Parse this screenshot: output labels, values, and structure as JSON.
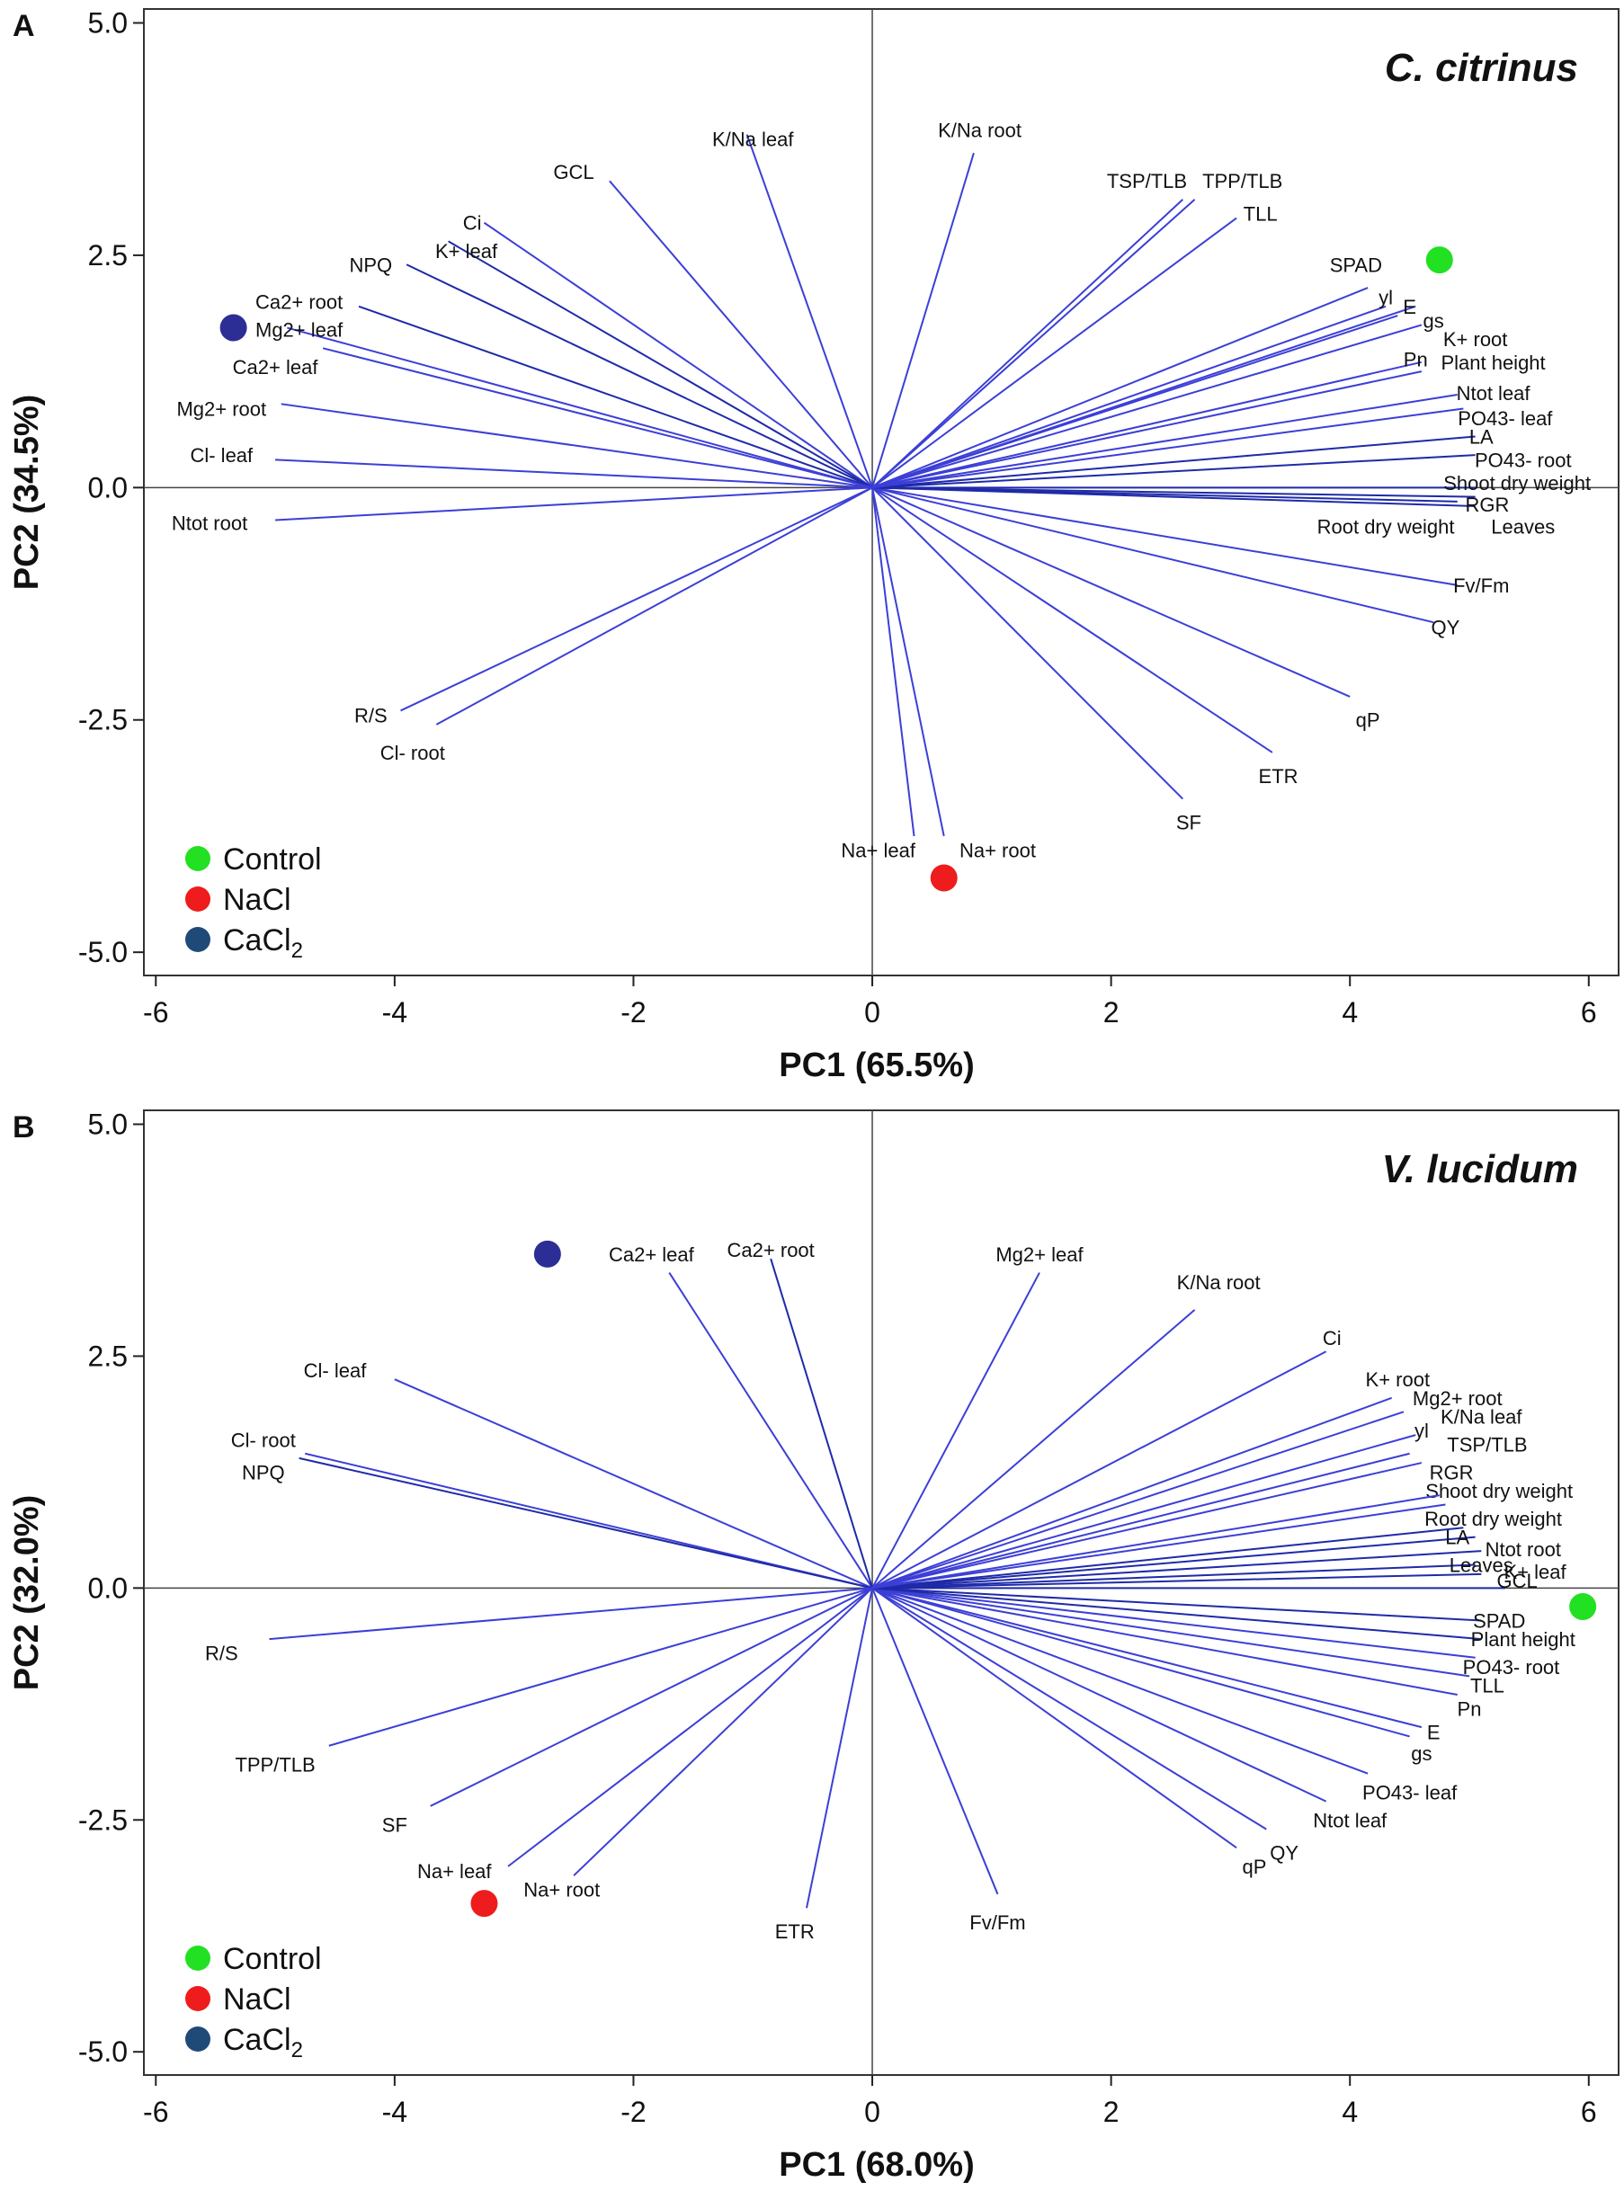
{
  "colors": {
    "vector": "#3c3fd6",
    "vector_dark": "#1f2aa8",
    "control": "#22e022",
    "nacl": "#ee1c1c",
    "cacl2": "#2c2e96",
    "cacl2_legend": "#1f4a78"
  },
  "chart_data": [
    {
      "type": "scatter",
      "panel": "A",
      "title": "C. citrinus",
      "xlabel": "PC1 (65.5%)",
      "ylabel": "PC2 (34.5%)",
      "xlim": [
        -6.1,
        6.25
      ],
      "ylim": [
        -5.25,
        5.15
      ],
      "xticks": [
        -6,
        -4,
        -2,
        0,
        2,
        4,
        6
      ],
      "xtick_labels": [
        "-6",
        "-4",
        "-2",
        "0",
        "2",
        "4",
        "6"
      ],
      "yticks": [
        5.0,
        2.5,
        0.0,
        -2.5,
        -5.0
      ],
      "ytick_labels": [
        "5.0",
        "2.5",
        "0.0",
        "-2.5",
        "-5.0"
      ],
      "legend_position": "bottom-left",
      "legend": [
        {
          "name": "Control",
          "color_key": "control"
        },
        {
          "name": "NaCl",
          "color_key": "nacl"
        },
        {
          "name": "CaCl2",
          "color_key": "cacl2_legend"
        }
      ],
      "points": [
        {
          "name": "Control",
          "x": 4.75,
          "y": 2.45,
          "color_key": "control"
        },
        {
          "name": "NaCl",
          "x": 0.6,
          "y": -4.2,
          "color_key": "nacl"
        },
        {
          "name": "CaCl2",
          "x": -5.35,
          "y": 1.72,
          "color_key": "cacl2"
        }
      ],
      "vectors": [
        {
          "label": "GCL",
          "x": -2.2,
          "y": 3.3,
          "lx": -2.5,
          "ly": 3.4
        },
        {
          "label": "K/Na leaf",
          "x": -1.05,
          "y": 3.8,
          "lx": -1.0,
          "ly": 3.75
        },
        {
          "label": "K/Na root",
          "x": 0.85,
          "y": 3.6,
          "lx": 0.9,
          "ly": 3.85
        },
        {
          "label": "Ci",
          "x": -3.25,
          "y": 2.85,
          "lx": -3.35,
          "ly": 2.85
        },
        {
          "label": "K+ leaf",
          "x": -3.55,
          "y": 2.65,
          "lx": -3.4,
          "ly": 2.55
        },
        {
          "label": "NPQ",
          "x": -3.9,
          "y": 2.4,
          "lx": -4.2,
          "ly": 2.4
        },
        {
          "label": "Ca2+ root",
          "x": -4.3,
          "y": 1.95,
          "lx": -4.8,
          "ly": 2.0
        },
        {
          "label": "Mg2+ leaf",
          "x": -4.9,
          "y": 1.72,
          "lx": -4.8,
          "ly": 1.7
        },
        {
          "label": "Ca2+ leaf",
          "x": -4.6,
          "y": 1.5,
          "lx": -5.0,
          "ly": 1.3
        },
        {
          "label": "Mg2+ root",
          "x": -4.95,
          "y": 0.9,
          "lx": -5.45,
          "ly": 0.85
        },
        {
          "label": "Cl- leaf",
          "x": -5.0,
          "y": 0.3,
          "lx": -5.45,
          "ly": 0.35
        },
        {
          "label": "Ntot root",
          "x": -5.0,
          "y": -0.35,
          "lx": -5.55,
          "ly": -0.38
        },
        {
          "label": "R/S",
          "x": -3.95,
          "y": -2.4,
          "lx": -4.2,
          "ly": -2.45
        },
        {
          "label": "Cl- root",
          "x": -3.65,
          "y": -2.55,
          "lx": -3.85,
          "ly": -2.85
        },
        {
          "label": "Na+ leaf",
          "x": 0.35,
          "y": -3.75,
          "lx": 0.05,
          "ly": -3.9
        },
        {
          "label": "Na+  root",
          "x": 0.6,
          "y": -3.75,
          "lx": 1.05,
          "ly": -3.9
        },
        {
          "label": "SF",
          "x": 2.6,
          "y": -3.35,
          "lx": 2.65,
          "ly": -3.6
        },
        {
          "label": "ETR",
          "x": 3.35,
          "y": -2.85,
          "lx": 3.4,
          "ly": -3.1
        },
        {
          "label": "qP",
          "x": 4.0,
          "y": -2.25,
          "lx": 4.15,
          "ly": -2.5
        },
        {
          "label": "QY",
          "x": 4.7,
          "y": -1.45,
          "lx": 4.8,
          "ly": -1.5
        },
        {
          "label": "Fv/Fm",
          "x": 4.9,
          "y": -1.05,
          "lx": 5.1,
          "ly": -1.05
        },
        {
          "label": "Leaves",
          "x": 5.05,
          "y": -0.2,
          "lx": 5.45,
          "ly": -0.42
        },
        {
          "label": "Root dry weight",
          "x": 4.9,
          "y": -0.15,
          "lx": 4.3,
          "ly": -0.42
        },
        {
          "label": "RGR",
          "x": 5.05,
          "y": -0.1,
          "lx": 5.15,
          "ly": -0.18
        },
        {
          "label": "Shoot dry weight",
          "x": 5.05,
          "y": 0.0,
          "lx": 5.4,
          "ly": 0.05
        },
        {
          "label": "PO43- root",
          "x": 5.05,
          "y": 0.35,
          "lx": 5.45,
          "ly": 0.3
        },
        {
          "label": "LA",
          "x": 5.05,
          "y": 0.55,
          "lx": 5.1,
          "ly": 0.55
        },
        {
          "label": "PO43- leaf",
          "x": 4.95,
          "y": 0.85,
          "lx": 5.3,
          "ly": 0.75
        },
        {
          "label": "Ntot leaf",
          "x": 4.9,
          "y": 1.0,
          "lx": 5.2,
          "ly": 1.02
        },
        {
          "label": "Plant height",
          "x": 4.6,
          "y": 1.25,
          "lx": 5.2,
          "ly": 1.35
        },
        {
          "label": "Pn",
          "x": 4.6,
          "y": 1.35,
          "lx": 4.55,
          "ly": 1.38
        },
        {
          "label": "K+ root",
          "x": 4.6,
          "y": 1.75,
          "lx": 5.05,
          "ly": 1.6
        },
        {
          "label": "gs",
          "x": 4.55,
          "y": 1.95,
          "lx": 4.7,
          "ly": 1.8
        },
        {
          "label": "E",
          "x": 4.4,
          "y": 1.85,
          "lx": 4.5,
          "ly": 1.95
        },
        {
          "label": "yl",
          "x": 4.3,
          "y": 1.95,
          "lx": 4.3,
          "ly": 2.05
        },
        {
          "label": "SPAD",
          "x": 4.15,
          "y": 2.15,
          "lx": 4.05,
          "ly": 2.4
        },
        {
          "label": "TLL",
          "x": 3.05,
          "y": 2.9,
          "lx": 3.25,
          "ly": 2.95
        },
        {
          "label": "TPP/TLB",
          "x": 2.7,
          "y": 3.1,
          "lx": 3.1,
          "ly": 3.3
        },
        {
          "label": "TSP/TLB",
          "x": 2.6,
          "y": 3.1,
          "lx": 2.3,
          "ly": 3.3
        }
      ]
    },
    {
      "type": "scatter",
      "panel": "B",
      "title": "V. lucidum",
      "xlabel": "PC1 (68.0%)",
      "ylabel": "PC2 (32.0%)",
      "xlim": [
        -6.1,
        6.25
      ],
      "ylim": [
        -5.25,
        5.15
      ],
      "xticks": [
        -6,
        -4,
        -2,
        0,
        2,
        4,
        6
      ],
      "xtick_labels": [
        "-6",
        "-4",
        "-2",
        "0",
        "2",
        "4",
        "6"
      ],
      "yticks": [
        5.0,
        2.5,
        0.0,
        -2.5,
        -5.0
      ],
      "ytick_labels": [
        "5.0",
        "2.5",
        "0.0",
        "-2.5",
        "-5.0"
      ],
      "legend_position": "bottom-left",
      "legend": [
        {
          "name": "Control",
          "color_key": "control"
        },
        {
          "name": "NaCl",
          "color_key": "nacl"
        },
        {
          "name": "CaCl2",
          "color_key": "cacl2_legend"
        }
      ],
      "points": [
        {
          "name": "Control",
          "x": 5.95,
          "y": -0.2,
          "color_key": "control"
        },
        {
          "name": "NaCl",
          "x": -3.25,
          "y": -3.4,
          "color_key": "nacl"
        },
        {
          "name": "CaCl2",
          "x": -2.72,
          "y": 3.6,
          "color_key": "cacl2"
        }
      ],
      "vectors": [
        {
          "label": "Ca2+ leaf",
          "x": -1.7,
          "y": 3.4,
          "lx": -1.85,
          "ly": 3.6
        },
        {
          "label": "Ca2+ root",
          "x": -0.85,
          "y": 3.55,
          "lx": -0.85,
          "ly": 3.65
        },
        {
          "label": "Mg2+ leaf",
          "x": 1.4,
          "y": 3.4,
          "lx": 1.4,
          "ly": 3.6
        },
        {
          "label": "K/Na root",
          "x": 2.7,
          "y": 3.0,
          "lx": 2.9,
          "ly": 3.3
        },
        {
          "label": "Ci",
          "x": 3.8,
          "y": 2.55,
          "lx": 3.85,
          "ly": 2.7
        },
        {
          "label": "Cl- leaf",
          "x": -4.0,
          "y": 2.25,
          "lx": -4.5,
          "ly": 2.35
        },
        {
          "label": "Cl- root",
          "x": -4.75,
          "y": 1.45,
          "lx": -5.1,
          "ly": 1.6
        },
        {
          "label": "NPQ",
          "x": -4.8,
          "y": 1.4,
          "lx": -5.1,
          "ly": 1.25
        },
        {
          "label": "R/S",
          "x": -5.05,
          "y": -0.55,
          "lx": -5.45,
          "ly": -0.7
        },
        {
          "label": "TPP/TLB",
          "x": -4.55,
          "y": -1.7,
          "lx": -5.0,
          "ly": -1.9
        },
        {
          "label": "SF",
          "x": -3.7,
          "y": -2.35,
          "lx": -4.0,
          "ly": -2.55
        },
        {
          "label": "Na+ leaf",
          "x": -3.05,
          "y": -3.0,
          "lx": -3.5,
          "ly": -3.05
        },
        {
          "label": "Na+  root",
          "x": -2.5,
          "y": -3.1,
          "lx": -2.6,
          "ly": -3.25
        },
        {
          "label": "ETR",
          "x": -0.55,
          "y": -3.45,
          "lx": -0.65,
          "ly": -3.7
        },
        {
          "label": "Fv/Fm",
          "x": 1.05,
          "y": -3.3,
          "lx": 1.05,
          "ly": -3.6
        },
        {
          "label": "qP",
          "x": 3.05,
          "y": -2.8,
          "lx": 3.2,
          "ly": -3.0
        },
        {
          "label": "QY",
          "x": 3.3,
          "y": -2.6,
          "lx": 3.45,
          "ly": -2.85
        },
        {
          "label": "Ntot leaf",
          "x": 3.8,
          "y": -2.3,
          "lx": 4.0,
          "ly": -2.5
        },
        {
          "label": "PO43- leaf",
          "x": 4.15,
          "y": -2.0,
          "lx": 4.5,
          "ly": -2.2
        },
        {
          "label": "gs",
          "x": 4.5,
          "y": -1.6,
          "lx": 4.6,
          "ly": -1.78
        },
        {
          "label": "E",
          "x": 4.6,
          "y": -1.5,
          "lx": 4.7,
          "ly": -1.55
        },
        {
          "label": "Pn",
          "x": 4.9,
          "y": -1.15,
          "lx": 5.0,
          "ly": -1.3
        },
        {
          "label": "TLL",
          "x": 5.0,
          "y": -0.95,
          "lx": 5.15,
          "ly": -1.05
        },
        {
          "label": "PO43- root",
          "x": 5.05,
          "y": -0.75,
          "lx": 5.35,
          "ly": -0.85
        },
        {
          "label": "Plant height",
          "x": 5.1,
          "y": -0.55,
          "lx": 5.45,
          "ly": -0.55
        },
        {
          "label": "SPAD",
          "x": 5.1,
          "y": -0.35,
          "lx": 5.25,
          "ly": -0.35
        },
        {
          "label": "GCL",
          "x": 5.3,
          "y": 0.0,
          "lx": 5.4,
          "ly": 0.08
        },
        {
          "label": "K+ leaf",
          "x": 5.1,
          "y": 0.15,
          "lx": 5.55,
          "ly": 0.18
        },
        {
          "label": "Leaves",
          "x": 5.05,
          "y": 0.25,
          "lx": 5.1,
          "ly": 0.25
        },
        {
          "label": "Ntot root",
          "x": 5.1,
          "y": 0.4,
          "lx": 5.45,
          "ly": 0.42
        },
        {
          "label": "LA",
          "x": 5.05,
          "y": 0.55,
          "lx": 4.9,
          "ly": 0.55
        },
        {
          "label": "Root dry weight",
          "x": 4.95,
          "y": 0.65,
          "lx": 5.2,
          "ly": 0.75
        },
        {
          "label": "Shoot dry weight",
          "x": 4.8,
          "y": 0.9,
          "lx": 5.25,
          "ly": 1.05
        },
        {
          "label": "RGR",
          "x": 4.75,
          "y": 1.0,
          "lx": 4.85,
          "ly": 1.25
        },
        {
          "label": "TSP/TLB",
          "x": 4.6,
          "y": 1.35,
          "lx": 5.15,
          "ly": 1.55
        },
        {
          "label": "yl",
          "x": 4.5,
          "y": 1.45,
          "lx": 4.6,
          "ly": 1.7
        },
        {
          "label": "K/Na leaf",
          "x": 4.55,
          "y": 1.65,
          "lx": 5.1,
          "ly": 1.85
        },
        {
          "label": "Mg2+ root",
          "x": 4.45,
          "y": 1.9,
          "lx": 4.9,
          "ly": 2.05
        },
        {
          "label": "K+ root",
          "x": 4.35,
          "y": 2.05,
          "lx": 4.4,
          "ly": 2.25
        }
      ]
    }
  ]
}
